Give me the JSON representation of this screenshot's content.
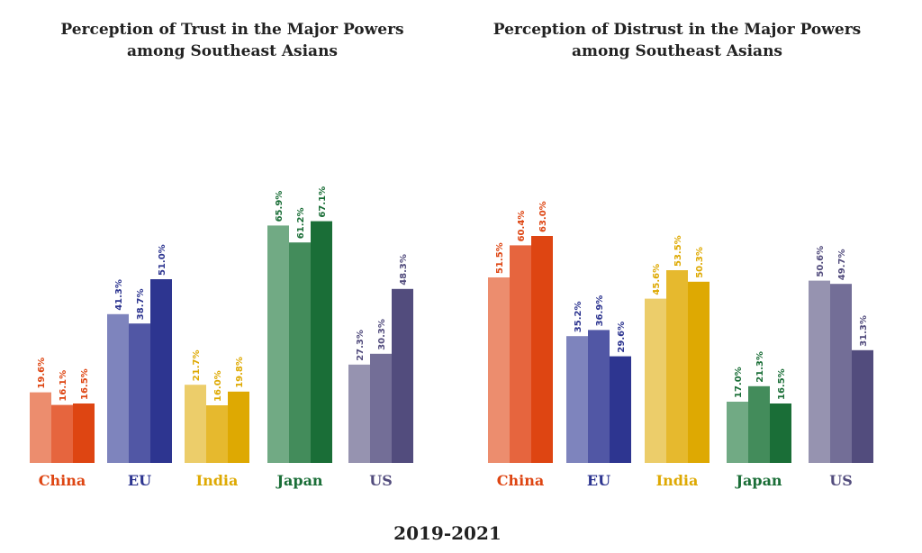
{
  "footer": "2019-2021",
  "chart_data": [
    {
      "type": "bar",
      "title_line1": "Perception of Trust in the Major Powers",
      "title_line2": "among Southeast Asians",
      "categories": [
        "China",
        "EU",
        "India",
        "Japan",
        "US"
      ],
      "years": [
        "2019",
        "2020",
        "2021"
      ],
      "values": [
        [
          19.6,
          16.1,
          16.5
        ],
        [
          41.3,
          38.7,
          51.0
        ],
        [
          21.7,
          16.0,
          19.8
        ],
        [
          65.9,
          61.2,
          67.1
        ],
        [
          27.3,
          30.3,
          48.3
        ]
      ],
      "labels": [
        [
          "19.6%",
          "16.1%",
          "16.5%"
        ],
        [
          "41.3%",
          "38.7%",
          "51.0%"
        ],
        [
          "21.7%",
          "16.0%",
          "19.8%"
        ],
        [
          "65.9%",
          "61.2%",
          "67.1%"
        ],
        [
          "27.3%",
          "30.3%",
          "48.3%"
        ]
      ],
      "ylim": [
        0,
        70
      ]
    },
    {
      "type": "bar",
      "title_line1": "Perception of Distrust in the Major Powers",
      "title_line2": "among Southeast Asians",
      "categories": [
        "China",
        "EU",
        "India",
        "Japan",
        "US"
      ],
      "years": [
        "2019",
        "2020",
        "2021"
      ],
      "values": [
        [
          51.5,
          60.4,
          63.0
        ],
        [
          35.2,
          36.9,
          29.6
        ],
        [
          45.6,
          53.5,
          50.3
        ],
        [
          17.0,
          21.3,
          16.5
        ],
        [
          50.6,
          49.7,
          31.3
        ]
      ],
      "labels": [
        [
          "51.5%",
          "60.4%",
          "63.0%"
        ],
        [
          "35.2%",
          "36.9%",
          "29.6%"
        ],
        [
          "45.6%",
          "53.5%",
          "50.3%"
        ],
        [
          "17.0%",
          "21.3%",
          "16.5%"
        ],
        [
          "50.6%",
          "49.7%",
          "31.3%"
        ]
      ],
      "ylim": [
        0,
        70
      ]
    }
  ],
  "colors": {
    "China": [
      "#ec8d6e",
      "#e6653e",
      "#de4512"
    ],
    "EU": [
      "#7e84bd",
      "#5157a5",
      "#2d3590"
    ],
    "India": [
      "#eccd6a",
      "#e6b92e",
      "#dea902"
    ],
    "Japan": [
      "#71aa84",
      "#438c5b",
      "#1a6e37"
    ],
    "US": [
      "#9693b0",
      "#736e97",
      "#524c7d"
    ],
    "label": {
      "China": "#de4512",
      "EU": "#2d3590",
      "India": "#dea902",
      "Japan": "#1a6e37",
      "US": "#524c7d"
    }
  }
}
